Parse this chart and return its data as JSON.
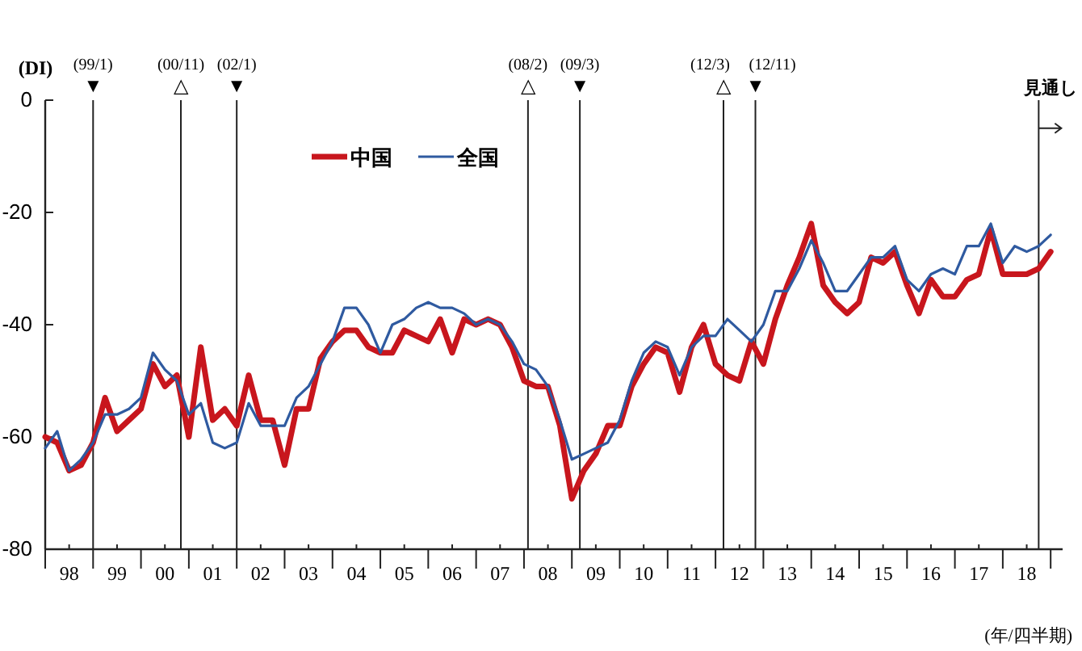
{
  "chart_data": {
    "type": "line",
    "ylabel": "(DI)",
    "xlabel": "(年/四半期)",
    "xlim": [
      "1998-01",
      "2019-04"
    ],
    "ylim": [
      -80,
      0
    ],
    "yticks": [
      0,
      -20,
      -40,
      -60,
      -80
    ],
    "xticks": [
      {
        "value": "1998-01",
        "label": null
      },
      {
        "value": "1998-07",
        "label": "98"
      },
      {
        "value": "1999-01",
        "label": null
      },
      {
        "value": "1999-07",
        "label": "99"
      },
      {
        "value": "2000-01",
        "label": null
      },
      {
        "value": "2000-07",
        "label": "00"
      },
      {
        "value": "2001-01",
        "label": null
      },
      {
        "value": "2001-07",
        "label": "01"
      },
      {
        "value": "2002-01",
        "label": null
      },
      {
        "value": "2002-07",
        "label": "02"
      },
      {
        "value": "2003-01",
        "label": null
      },
      {
        "value": "2003-07",
        "label": "03"
      },
      {
        "value": "2004-01",
        "label": null
      },
      {
        "value": "2004-07",
        "label": "04"
      },
      {
        "value": "2005-01",
        "label": null
      },
      {
        "value": "2005-07",
        "label": "05"
      },
      {
        "value": "2006-01",
        "label": null
      },
      {
        "value": "2006-07",
        "label": "06"
      },
      {
        "value": "2007-01",
        "label": null
      },
      {
        "value": "2007-07",
        "label": "07"
      },
      {
        "value": "2008-01",
        "label": null
      },
      {
        "value": "2008-07",
        "label": "08"
      },
      {
        "value": "2009-01",
        "label": null
      },
      {
        "value": "2009-07",
        "label": "09"
      },
      {
        "value": "2010-01",
        "label": null
      },
      {
        "value": "2010-07",
        "label": "10"
      },
      {
        "value": "2011-01",
        "label": null
      },
      {
        "value": "2011-07",
        "label": "11"
      },
      {
        "value": "2012-01",
        "label": null
      },
      {
        "value": "2012-07",
        "label": "12"
      },
      {
        "value": "2013-01",
        "label": null
      },
      {
        "value": "2013-07",
        "label": "13"
      },
      {
        "value": "2014-01",
        "label": null
      },
      {
        "value": "2014-07",
        "label": "14"
      },
      {
        "value": "2015-01",
        "label": null
      },
      {
        "value": "2015-07",
        "label": "15"
      },
      {
        "value": "2016-01",
        "label": null
      },
      {
        "value": "2016-07",
        "label": "16"
      },
      {
        "value": "2017-01",
        "label": null
      },
      {
        "value": "2017-07",
        "label": "17"
      },
      {
        "value": "2018-01",
        "label": null
      },
      {
        "value": "2018-07",
        "label": "18"
      },
      {
        "value": "2019-01",
        "label": null
      }
    ],
    "x": [
      "1998-01",
      "1998-04",
      "1998-07",
      "1998-10",
      "1999-01",
      "1999-04",
      "1999-07",
      "1999-10",
      "2000-01",
      "2000-04",
      "2000-07",
      "2000-10",
      "2001-01",
      "2001-04",
      "2001-07",
      "2001-10",
      "2002-01",
      "2002-04",
      "2002-07",
      "2002-10",
      "2003-01",
      "2003-04",
      "2003-07",
      "2003-10",
      "2004-01",
      "2004-04",
      "2004-07",
      "2004-10",
      "2005-01",
      "2005-04",
      "2005-07",
      "2005-10",
      "2006-01",
      "2006-04",
      "2006-07",
      "2006-10",
      "2007-01",
      "2007-04",
      "2007-07",
      "2007-10",
      "2008-01",
      "2008-04",
      "2008-07",
      "2008-10",
      "2009-01",
      "2009-04",
      "2009-07",
      "2009-10",
      "2010-01",
      "2010-04",
      "2010-07",
      "2010-10",
      "2011-01",
      "2011-04",
      "2011-07",
      "2011-10",
      "2012-01",
      "2012-04",
      "2012-07",
      "2012-10",
      "2013-01",
      "2013-04",
      "2013-07",
      "2013-10",
      "2014-01",
      "2014-04",
      "2014-07",
      "2014-10",
      "2015-01",
      "2015-04",
      "2015-07",
      "2015-10",
      "2016-01",
      "2016-04",
      "2016-07",
      "2016-10",
      "2017-01",
      "2017-04",
      "2017-07",
      "2017-10",
      "2018-01",
      "2018-04",
      "2018-07",
      "2018-10",
      "2019-01"
    ],
    "series": [
      {
        "name": "中国",
        "color": "#c8161d",
        "values": [
          -60,
          -61,
          -66,
          -65,
          -61,
          -53,
          -59,
          -57,
          -55,
          -47,
          -51,
          -49,
          -60,
          -44,
          -57,
          -55,
          -58,
          -49,
          -57,
          -57,
          -65,
          -55,
          -55,
          -46,
          -43,
          -41,
          -41,
          -44,
          -45,
          -45,
          -41,
          -42,
          -43,
          -39,
          -45,
          -39,
          -40,
          -39,
          -40,
          -44,
          -50,
          -51,
          -51,
          -58,
          -71,
          -66,
          -63,
          -58,
          -58,
          -51,
          -47,
          -44,
          -45,
          -52,
          -44,
          -40,
          -47,
          -49,
          -50,
          -43,
          -47,
          -39,
          -33,
          -28,
          -22,
          -33,
          -36,
          -38,
          -36,
          -28,
          -29,
          -27,
          -33,
          -38,
          -32,
          -35,
          -35,
          -32,
          -31,
          -23,
          -31,
          -31,
          -31,
          -30,
          -27
        ]
      },
      {
        "name": "全国",
        "color": "#2f5aa0",
        "values": [
          -62,
          -59,
          -66,
          -64,
          -61,
          -56,
          -56,
          -55,
          -53,
          -45,
          -48,
          -50,
          -56,
          -54,
          -61,
          -62,
          -61,
          -54,
          -58,
          -58,
          -58,
          -53,
          -51,
          -47,
          -43,
          -37,
          -37,
          -40,
          -45,
          -40,
          -39,
          -37,
          -36,
          -37,
          -37,
          -38,
          -40,
          -39,
          -40,
          -43,
          -47,
          -48,
          -51,
          -57,
          -64,
          -63,
          -62,
          -61,
          -57,
          -50,
          -45,
          -43,
          -44,
          -49,
          -44,
          -42,
          -42,
          -39,
          -41,
          -43,
          -40,
          -34,
          -34,
          -30,
          -25,
          -29,
          -34,
          -34,
          -31,
          -28,
          -28,
          -26,
          -32,
          -34,
          -31,
          -30,
          -31,
          -26,
          -26,
          -22,
          -29,
          -26,
          -27,
          -26,
          -24
        ]
      }
    ],
    "legend": "top",
    "ref_lines": [
      {
        "axis": "x",
        "value": "1999-01",
        "label": "(99/1)\n▼"
      },
      {
        "axis": "x",
        "value": "2000-11",
        "label": "(00/11)\n△"
      },
      {
        "axis": "x",
        "value": "2002-01",
        "label": "(02/1)\n▼"
      },
      {
        "axis": "x",
        "value": "2008-02",
        "label": "(08/2)\n△"
      },
      {
        "axis": "x",
        "value": "2009-03",
        "label": "(09/3)\n▼"
      },
      {
        "axis": "x",
        "value": "2012-03",
        "label": "(12/3)\n△"
      },
      {
        "axis": "x",
        "value": "2012-11",
        "label": "(12/11)\n▼"
      },
      {
        "axis": "x",
        "value": "2018-10"
      }
    ],
    "annotations": [
      {
        "text": "見通し",
        "x": "2018-10",
        "y": -5
      }
    ]
  }
}
